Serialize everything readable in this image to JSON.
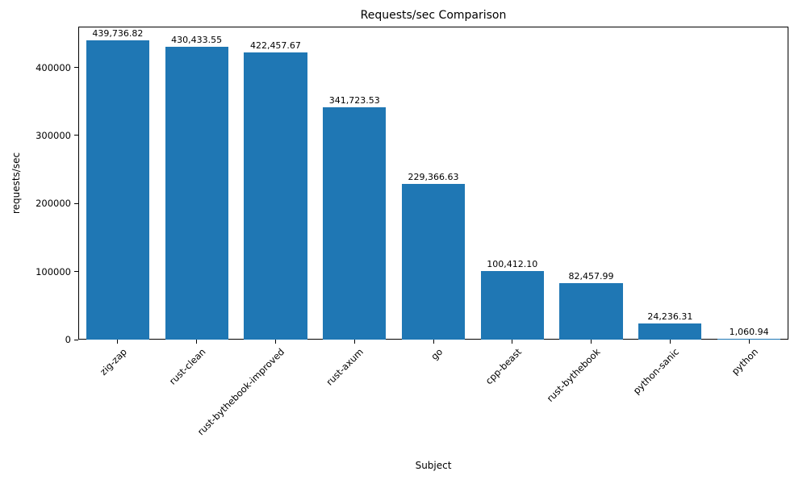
{
  "chart_data": {
    "type": "bar",
    "title": "Requests/sec Comparison",
    "xlabel": "Subject",
    "ylabel": "requests/sec",
    "categories": [
      "zig-zap",
      "rust-clean",
      "rust-bythebook-improved",
      "rust-axum",
      "go",
      "cpp-beast",
      "rust-bythebook",
      "python-sanic",
      "python"
    ],
    "values": [
      439736.82,
      430433.55,
      422457.67,
      341723.53,
      229366.63,
      100412.1,
      82457.99,
      24236.31,
      1060.94
    ],
    "value_labels": [
      "439,736.82",
      "430,433.55",
      "422,457.67",
      "341,723.53",
      "229,366.63",
      "100,412.10",
      "82,457.99",
      "24,236.31",
      "1,060.94"
    ],
    "yticks": [
      0,
      100000,
      200000,
      300000,
      400000
    ],
    "ytick_labels": [
      "0",
      "100000",
      "200000",
      "300000",
      "400000"
    ],
    "ylim": [
      0,
      460000
    ],
    "bar_color": "#1f77b4",
    "grid": false,
    "legend_position": "none"
  }
}
